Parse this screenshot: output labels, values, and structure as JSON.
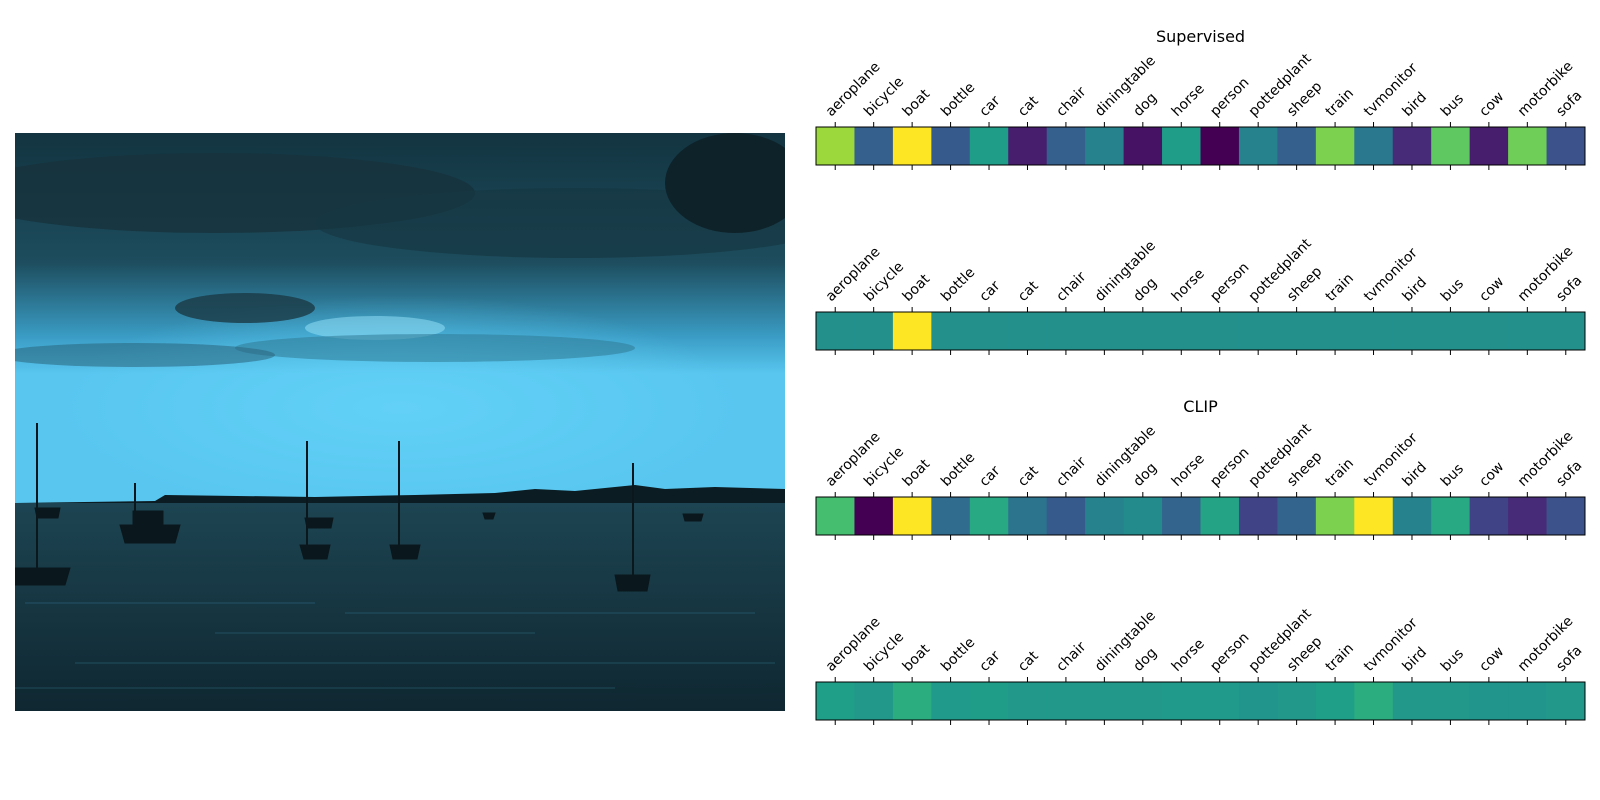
{
  "photo": {
    "icon": "harbor-sunset-photo",
    "description_icon": "boats-at-dusk",
    "colors": {
      "sky_top": "#12323d",
      "sky_glow": "#58c6ef",
      "cloud": "#0f2a33",
      "water": "#13313b",
      "silhouette": "#0b1c22"
    }
  },
  "chart_data": [
    {
      "type": "heatmap",
      "title": "Supervised",
      "categories": [
        "aeroplane",
        "bicycle",
        "boat",
        "bottle",
        "car",
        "cat",
        "chair",
        "diningtable",
        "dog",
        "horse",
        "person",
        "pottedplant",
        "sheep",
        "train",
        "tvmonitor",
        "bird",
        "bus",
        "cow",
        "motorbike",
        "sofa"
      ],
      "values": [
        0.85,
        0.3,
        1.0,
        0.28,
        0.55,
        0.08,
        0.3,
        0.45,
        0.05,
        0.55,
        0.0,
        0.45,
        0.3,
        0.8,
        0.4,
        0.12,
        0.75,
        0.08,
        0.78,
        0.25
      ],
      "colormap": "viridis",
      "vlim": [
        0,
        1
      ]
    },
    {
      "type": "heatmap",
      "title": "",
      "categories": [
        "aeroplane",
        "bicycle",
        "boat",
        "bottle",
        "car",
        "cat",
        "chair",
        "diningtable",
        "dog",
        "horse",
        "person",
        "pottedplant",
        "sheep",
        "train",
        "tvmonitor",
        "bird",
        "bus",
        "cow",
        "motorbike",
        "sofa"
      ],
      "values": [
        0.5,
        0.5,
        1.0,
        0.5,
        0.5,
        0.5,
        0.5,
        0.5,
        0.5,
        0.5,
        0.5,
        0.5,
        0.5,
        0.5,
        0.5,
        0.5,
        0.5,
        0.5,
        0.5,
        0.5
      ],
      "colormap": "viridis",
      "vlim": [
        0,
        1
      ]
    },
    {
      "type": "heatmap",
      "title": "CLIP",
      "categories": [
        "aeroplane",
        "bicycle",
        "boat",
        "bottle",
        "car",
        "cat",
        "chair",
        "diningtable",
        "dog",
        "horse",
        "person",
        "pottedplant",
        "sheep",
        "train",
        "tvmonitor",
        "bird",
        "bus",
        "cow",
        "motorbike",
        "sofa"
      ],
      "values": [
        0.7,
        0.0,
        1.0,
        0.35,
        0.6,
        0.38,
        0.28,
        0.45,
        0.48,
        0.32,
        0.58,
        0.2,
        0.32,
        0.8,
        1.0,
        0.45,
        0.6,
        0.2,
        0.12,
        0.25
      ],
      "colormap": "viridis",
      "vlim": [
        0,
        1
      ]
    },
    {
      "type": "heatmap",
      "title": "",
      "categories": [
        "aeroplane",
        "bicycle",
        "boat",
        "bottle",
        "car",
        "cat",
        "chair",
        "diningtable",
        "dog",
        "horse",
        "person",
        "pottedplant",
        "sheep",
        "train",
        "tvmonitor",
        "bird",
        "bus",
        "cow",
        "motorbike",
        "sofa"
      ],
      "values": [
        0.56,
        0.53,
        0.62,
        0.54,
        0.55,
        0.53,
        0.53,
        0.53,
        0.53,
        0.54,
        0.54,
        0.52,
        0.53,
        0.56,
        0.62,
        0.53,
        0.53,
        0.52,
        0.52,
        0.53
      ],
      "colormap": "viridis",
      "vlim": [
        0,
        1
      ]
    }
  ]
}
